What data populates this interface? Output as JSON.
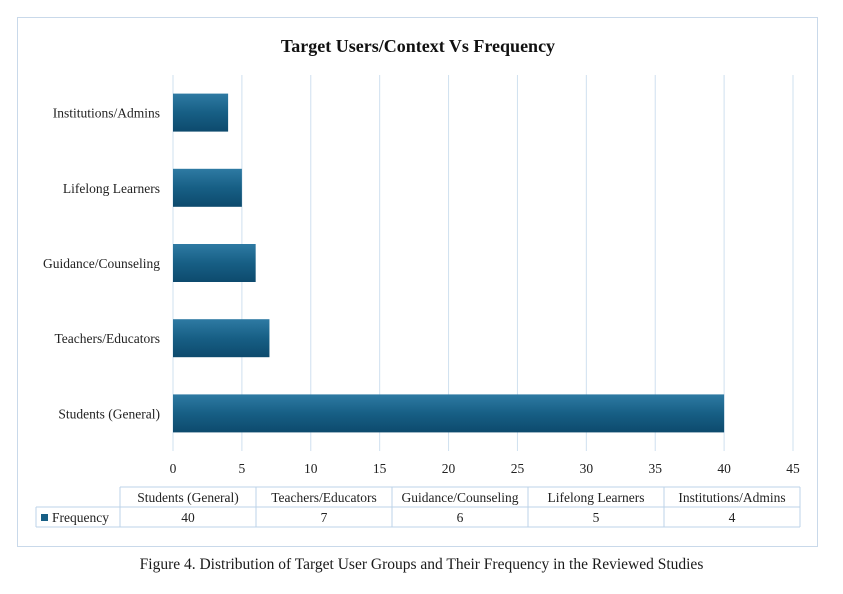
{
  "chart_data": {
    "type": "bar",
    "orientation": "horizontal",
    "title": "Target Users/Context Vs Frequency",
    "categories": [
      "Students (General)",
      "Teachers/Educators",
      "Guidance/Counseling",
      "Lifelong Learners",
      "Institutions/Admins"
    ],
    "series": [
      {
        "name": "Frequency",
        "values": [
          40,
          7,
          6,
          5,
          4
        ]
      }
    ],
    "xlim": [
      0,
      45
    ],
    "x_ticks": [
      "0",
      "5",
      "10",
      "15",
      "20",
      "25",
      "30",
      "35",
      "40",
      "45"
    ],
    "xlabel": "",
    "ylabel": "",
    "grid": true,
    "data_table": true,
    "colors": {
      "bar": "#175f85",
      "bar_light": "#2e7aa3",
      "bar_dark": "#0d4a6d",
      "grid": "#cfe0ef",
      "table_border": "#bcd3e8"
    }
  },
  "caption": "Figure 4. Distribution of Target User Groups and Their Frequency in the Reviewed Studies"
}
